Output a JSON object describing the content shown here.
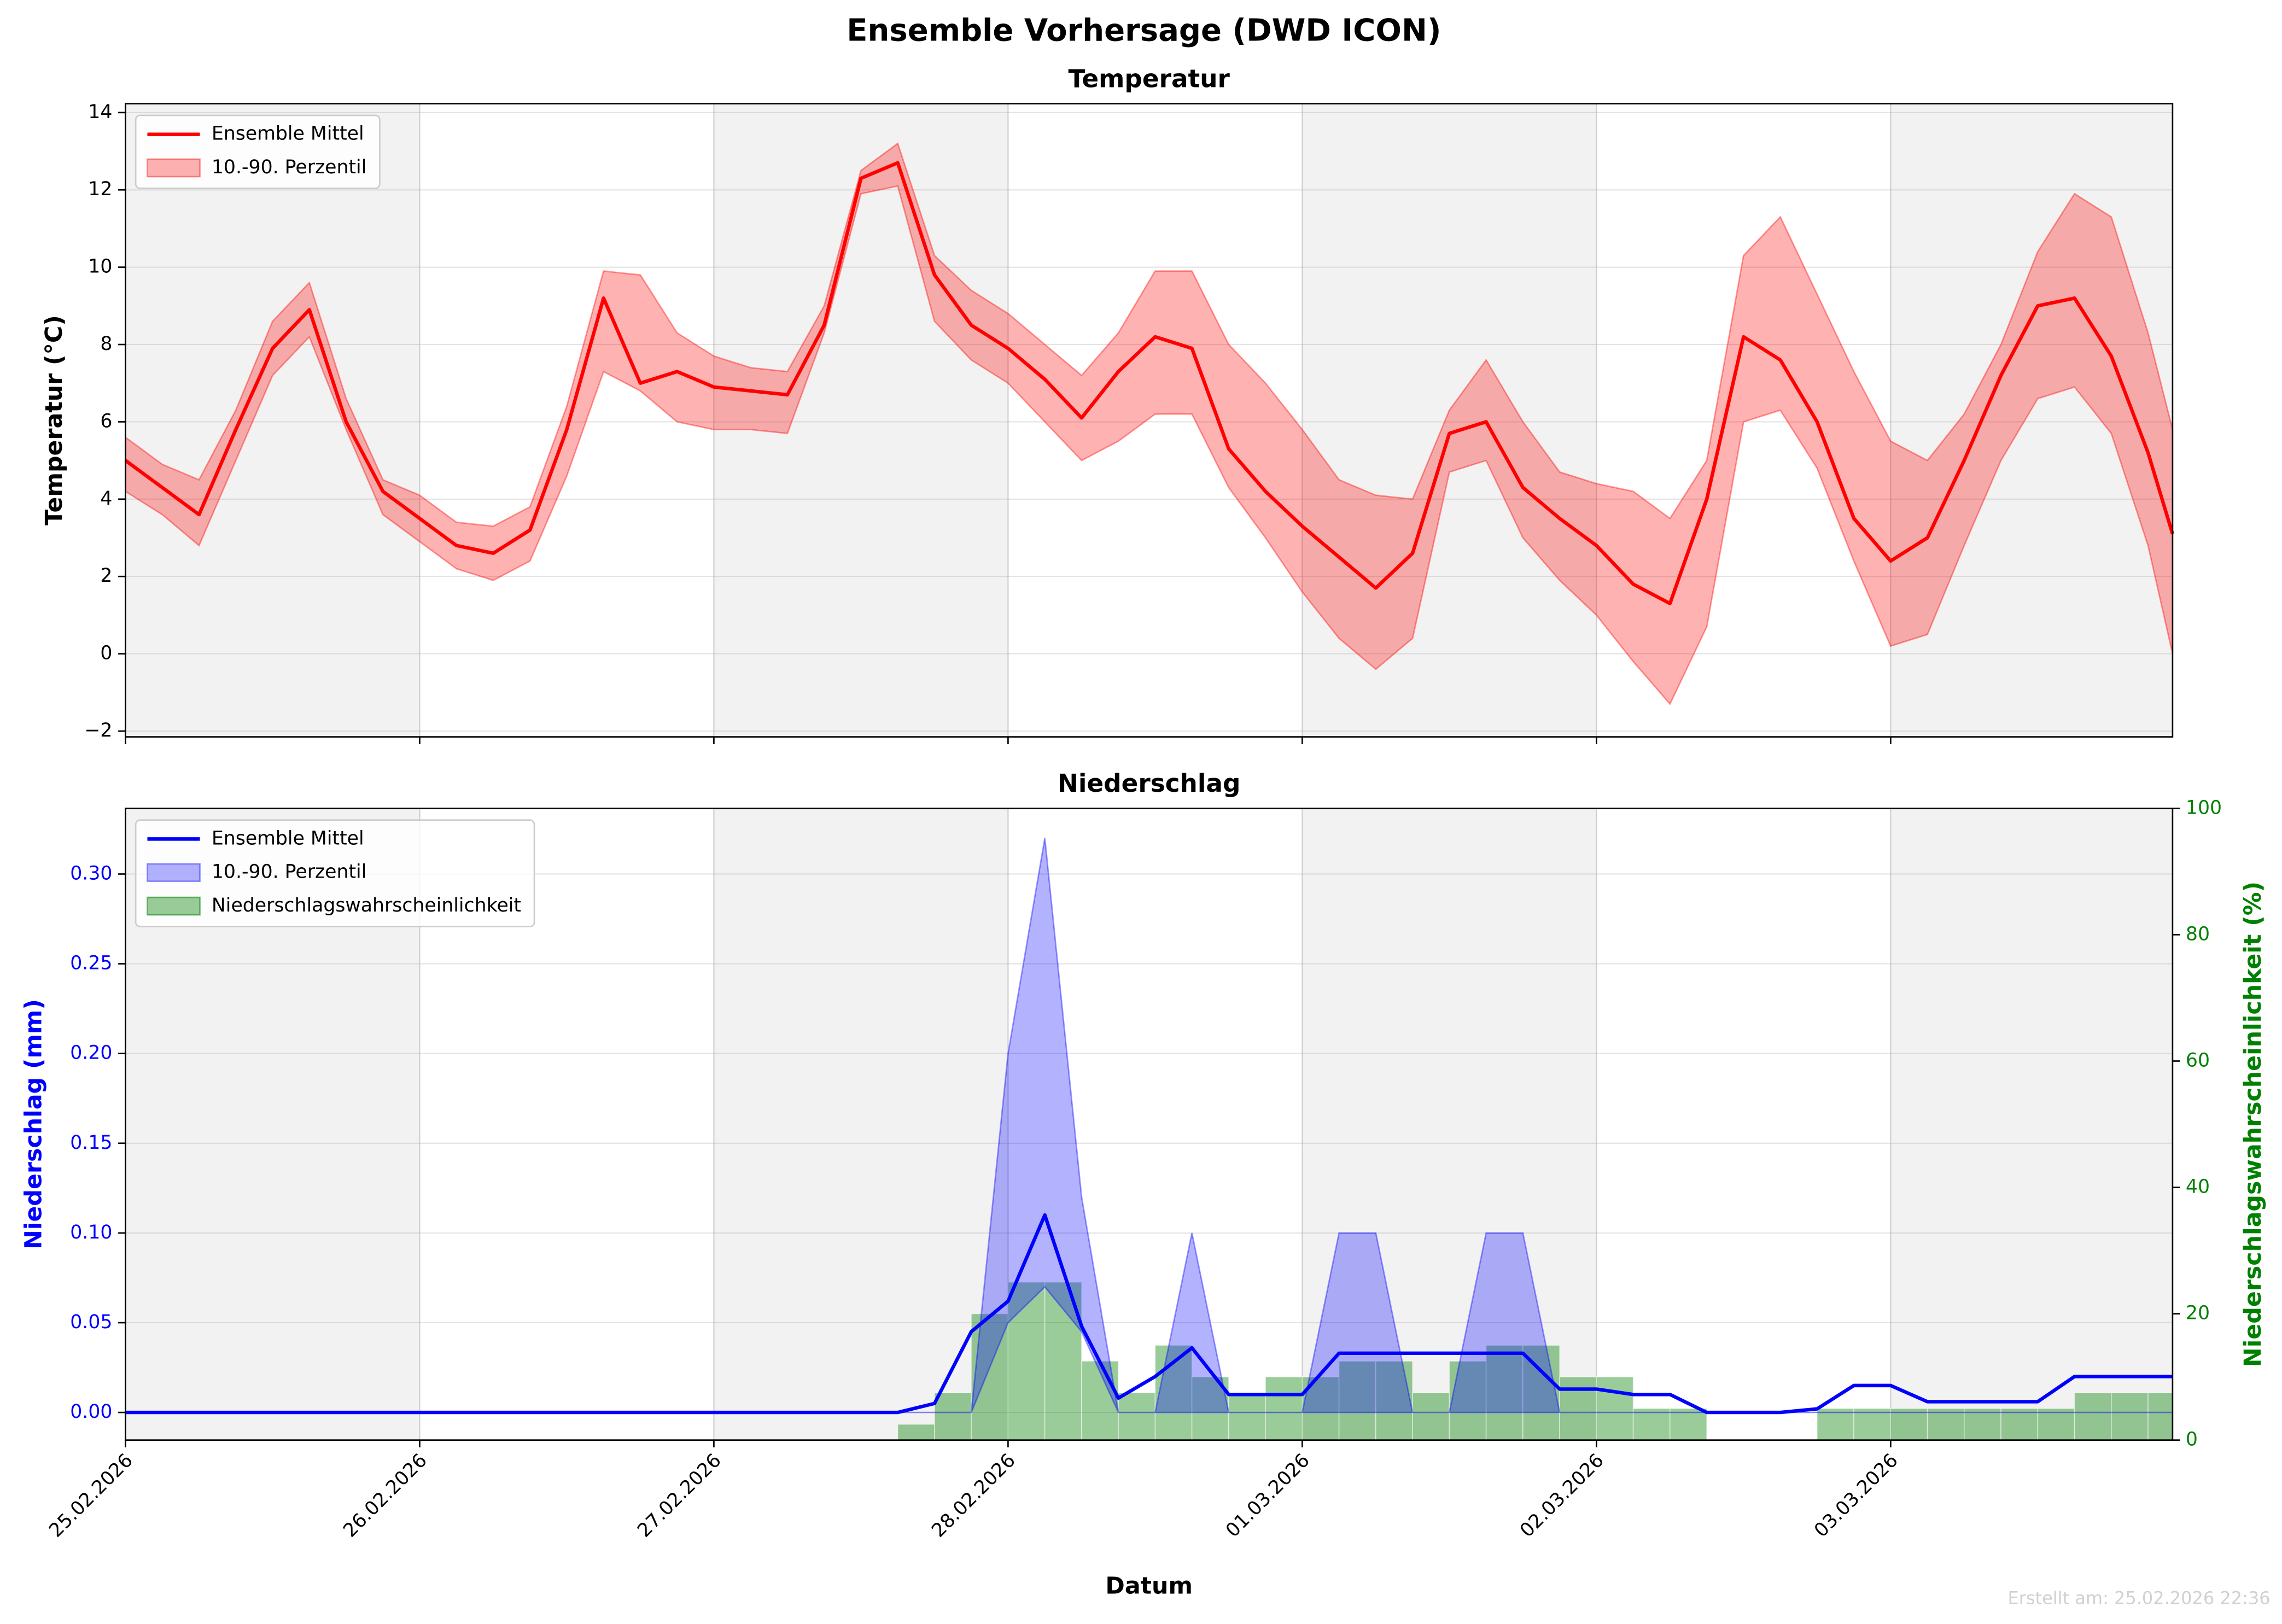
{
  "title": "Ensemble Vorhersage (DWD ICON)",
  "footnote": "Erstellt am: 25.02.2026 22:36",
  "chart_data": [
    {
      "type": "line",
      "title": "Temperatur",
      "ylabel": "Temperatur (°C)",
      "x": [
        0,
        3,
        6,
        9,
        12,
        15,
        18,
        21,
        24,
        27,
        30,
        33,
        36,
        39,
        42,
        45,
        48,
        51,
        54,
        57,
        60,
        63,
        66,
        69,
        72,
        75,
        78,
        81,
        84,
        87,
        90,
        93,
        96,
        99,
        102,
        105,
        108,
        111,
        114,
        117,
        120,
        123,
        126,
        129,
        132,
        135,
        138,
        141,
        144,
        147,
        150,
        153,
        156,
        159,
        162,
        165,
        167
      ],
      "xlim": [
        0,
        167
      ],
      "xticks": [
        0,
        24,
        48,
        72,
        96,
        120,
        144
      ],
      "ylim": [
        -2.15,
        14.23
      ],
      "yticks": [
        {
          "value": -2,
          "label": "−2"
        },
        0,
        2,
        4,
        6,
        8,
        10,
        12,
        14
      ],
      "grid": true,
      "legend": "upper left",
      "series": [
        {
          "name": "Ensemble Mittel",
          "type": "line",
          "color": "#ff0000",
          "values": [
            5.0,
            4.3,
            3.6,
            5.8,
            7.9,
            8.9,
            6.0,
            4.2,
            3.5,
            2.8,
            2.6,
            3.2,
            5.8,
            9.2,
            7.0,
            7.3,
            6.9,
            6.8,
            6.7,
            8.5,
            12.3,
            12.7,
            9.8,
            8.5,
            7.9,
            7.1,
            6.1,
            7.3,
            8.2,
            7.9,
            5.3,
            4.2,
            3.3,
            2.5,
            1.7,
            2.6,
            5.7,
            6.0,
            4.3,
            3.5,
            2.8,
            1.8,
            1.3,
            4.0,
            8.2,
            7.6,
            6.0,
            3.5,
            2.4,
            3.0,
            5.0,
            7.2,
            9.0,
            9.2,
            7.7,
            5.2,
            3.1
          ]
        },
        {
          "name": "10.-90. Perzentil",
          "type": "band",
          "color": "#ff0000",
          "alpha": 0.3,
          "lower": [
            4.2,
            3.6,
            2.8,
            5.0,
            7.2,
            8.2,
            5.8,
            3.6,
            2.9,
            2.2,
            1.9,
            2.4,
            4.6,
            7.3,
            6.8,
            6.0,
            5.8,
            5.8,
            5.7,
            8.3,
            11.9,
            12.1,
            8.6,
            7.6,
            7.0,
            6.0,
            5.0,
            5.5,
            6.2,
            6.2,
            4.3,
            3.0,
            1.6,
            0.4,
            -0.4,
            0.4,
            4.7,
            5.0,
            3.0,
            1.9,
            1.0,
            -0.2,
            -1.3,
            0.7,
            6.0,
            6.3,
            4.8,
            2.4,
            0.2,
            0.5,
            2.8,
            5.0,
            6.6,
            6.9,
            5.7,
            2.8,
            0.0
          ],
          "upper": [
            5.6,
            4.9,
            4.5,
            6.3,
            8.6,
            9.6,
            6.6,
            4.5,
            4.1,
            3.4,
            3.3,
            3.8,
            6.4,
            9.9,
            9.8,
            8.3,
            7.7,
            7.4,
            7.3,
            9.0,
            12.5,
            13.2,
            10.3,
            9.4,
            8.8,
            8.0,
            7.2,
            8.3,
            9.9,
            9.9,
            8.0,
            7.0,
            5.8,
            4.5,
            4.1,
            4.0,
            6.3,
            7.6,
            6.0,
            4.7,
            4.4,
            4.2,
            3.5,
            5.0,
            10.3,
            11.3,
            9.3,
            7.3,
            5.5,
            5.0,
            6.2,
            8.0,
            10.4,
            11.9,
            11.3,
            8.3,
            5.8
          ]
        }
      ]
    },
    {
      "type": "line",
      "title": "Niederschlag",
      "xlabel": "Datum",
      "ylabel": "Niederschlag (mm)",
      "ylabel_color": "#0000ff",
      "y2label": "Niederschlagswahrscheinlichkeit (%)",
      "y2label_color": "#008000",
      "x": [
        0,
        3,
        6,
        9,
        12,
        15,
        18,
        21,
        24,
        27,
        30,
        33,
        36,
        39,
        42,
        45,
        48,
        51,
        54,
        57,
        60,
        63,
        66,
        69,
        72,
        75,
        78,
        81,
        84,
        87,
        90,
        93,
        96,
        99,
        102,
        105,
        108,
        111,
        114,
        117,
        120,
        123,
        126,
        129,
        132,
        135,
        138,
        141,
        144,
        147,
        150,
        153,
        156,
        159,
        162,
        165,
        167
      ],
      "xlim": [
        0,
        167
      ],
      "xticks": [
        {
          "value": 0,
          "label": "25.02.2026"
        },
        {
          "value": 24,
          "label": "26.02.2026"
        },
        {
          "value": 48,
          "label": "27.02.2026"
        },
        {
          "value": 72,
          "label": "28.02.2026"
        },
        {
          "value": 96,
          "label": "01.03.2026"
        },
        {
          "value": 120,
          "label": "02.03.2026"
        },
        {
          "value": 144,
          "label": "03.03.2026"
        }
      ],
      "ylim": [
        -0.0154,
        0.3366
      ],
      "yticks": [
        {
          "value": 0,
          "label": "0.00"
        },
        {
          "value": 0.05,
          "label": "0.05"
        },
        {
          "value": 0.1,
          "label": "0.10"
        },
        {
          "value": 0.15,
          "label": "0.15"
        },
        {
          "value": 0.2,
          "label": "0.20"
        },
        {
          "value": 0.25,
          "label": "0.25"
        },
        {
          "value": 0.3,
          "label": "0.30"
        }
      ],
      "y2lim": [
        0,
        100
      ],
      "y2ticks": [
        0,
        20,
        40,
        60,
        80,
        100
      ],
      "grid": true,
      "legend": "upper left",
      "series": [
        {
          "name": "Ensemble Mittel",
          "type": "line",
          "color": "#0000ff",
          "values": [
            0,
            0,
            0,
            0,
            0,
            0,
            0,
            0,
            0,
            0,
            0,
            0,
            0,
            0,
            0,
            0,
            0,
            0,
            0,
            0,
            0,
            0,
            0.005,
            0.045,
            0.062,
            0.11,
            0.048,
            0.008,
            0.02,
            0.036,
            0.01,
            0.01,
            0.01,
            0.033,
            0.033,
            0.033,
            0.033,
            0.033,
            0.033,
            0.013,
            0.013,
            0.01,
            0.01,
            0,
            0,
            0,
            0.002,
            0.015,
            0.015,
            0.006,
            0.006,
            0.006,
            0.006,
            0.02,
            0.02,
            0.02,
            0.02
          ]
        },
        {
          "name": "10.-90. Perzentil",
          "type": "band",
          "color": "#0000ff",
          "alpha": 0.3,
          "lower": [
            0,
            0,
            0,
            0,
            0,
            0,
            0,
            0,
            0,
            0,
            0,
            0,
            0,
            0,
            0,
            0,
            0,
            0,
            0,
            0,
            0,
            0,
            0,
            0,
            0.05,
            0.07,
            0.045,
            0,
            0,
            0,
            0,
            0,
            0,
            0,
            0,
            0,
            0,
            0,
            0,
            0,
            0,
            0,
            0,
            0,
            0,
            0,
            0,
            0,
            0,
            0,
            0,
            0,
            0,
            0,
            0,
            0,
            0
          ],
          "upper": [
            0,
            0,
            0,
            0,
            0,
            0,
            0,
            0,
            0,
            0,
            0,
            0,
            0,
            0,
            0,
            0,
            0,
            0,
            0,
            0,
            0,
            0,
            0,
            0,
            0.2,
            0.32,
            0.12,
            0,
            0,
            0.1,
            0,
            0,
            0,
            0.1,
            0.1,
            0,
            0,
            0.1,
            0.1,
            0,
            0,
            0,
            0,
            0,
            0,
            0,
            0,
            0,
            0,
            0,
            0,
            0,
            0,
            0,
            0,
            0,
            0
          ]
        },
        {
          "name": "Niederschlagswahrscheinlichkeit",
          "type": "bar",
          "axis": "y2",
          "color": "#008000",
          "alpha": 0.4,
          "values": [
            0,
            0,
            0,
            0,
            0,
            0,
            0,
            0,
            0,
            0,
            0,
            0,
            0,
            0,
            0,
            0,
            0,
            0,
            0,
            0,
            0,
            2.5,
            7.5,
            20,
            25,
            25,
            12.5,
            7.5,
            15,
            10,
            7.5,
            10,
            10,
            12.5,
            12.5,
            7.5,
            12.5,
            15,
            15,
            10,
            10,
            5,
            5,
            0,
            0,
            0,
            5,
            5,
            5,
            5,
            5,
            5,
            5,
            7.5,
            7.5,
            7.5,
            7.5
          ]
        }
      ]
    }
  ]
}
